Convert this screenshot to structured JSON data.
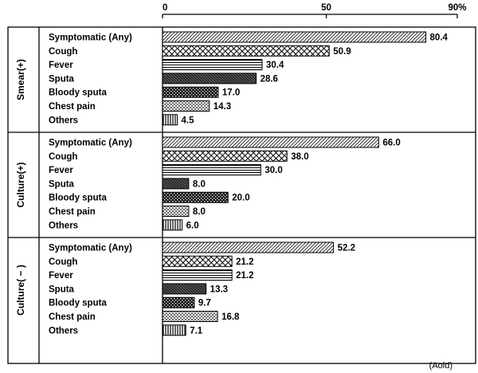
{
  "chart_data": {
    "type": "bar",
    "orientation": "horizontal",
    "x_ticks": [
      "0",
      "50",
      "90%"
    ],
    "xlim": [
      0,
      90
    ],
    "footnote": "(Aold)",
    "categories": [
      "Symptomatic (Any)",
      "Cough",
      "Fever",
      "Sputa",
      "Bloody sputa",
      "Chest pain",
      "Others"
    ],
    "patterns": [
      "diag-dense",
      "crosshatch",
      "hlines",
      "diag-dark",
      "checker",
      "dots",
      "vlines"
    ],
    "groups": [
      {
        "name": "Smear(+)",
        "values": [
          80.4,
          50.9,
          30.4,
          28.6,
          17.0,
          14.3,
          4.5
        ],
        "labels": [
          "80.4",
          "50.9",
          "30.4",
          "28.6",
          "17.0",
          "14.3",
          "4.5"
        ]
      },
      {
        "name": "Culture(+)",
        "values": [
          66.0,
          38.0,
          30.0,
          8.0,
          20.0,
          8.0,
          6.0
        ],
        "labels": [
          "66.0",
          "38.0",
          "30.0",
          "8.0",
          "20.0",
          "8.0",
          "6.0"
        ]
      },
      {
        "name": "Culture( − )",
        "values": [
          52.2,
          21.2,
          21.2,
          13.3,
          9.7,
          16.8,
          7.1
        ],
        "labels": [
          "52.2",
          "21.2",
          "21.2",
          "13.3",
          "9.7",
          "16.8",
          "7.1"
        ]
      }
    ]
  }
}
